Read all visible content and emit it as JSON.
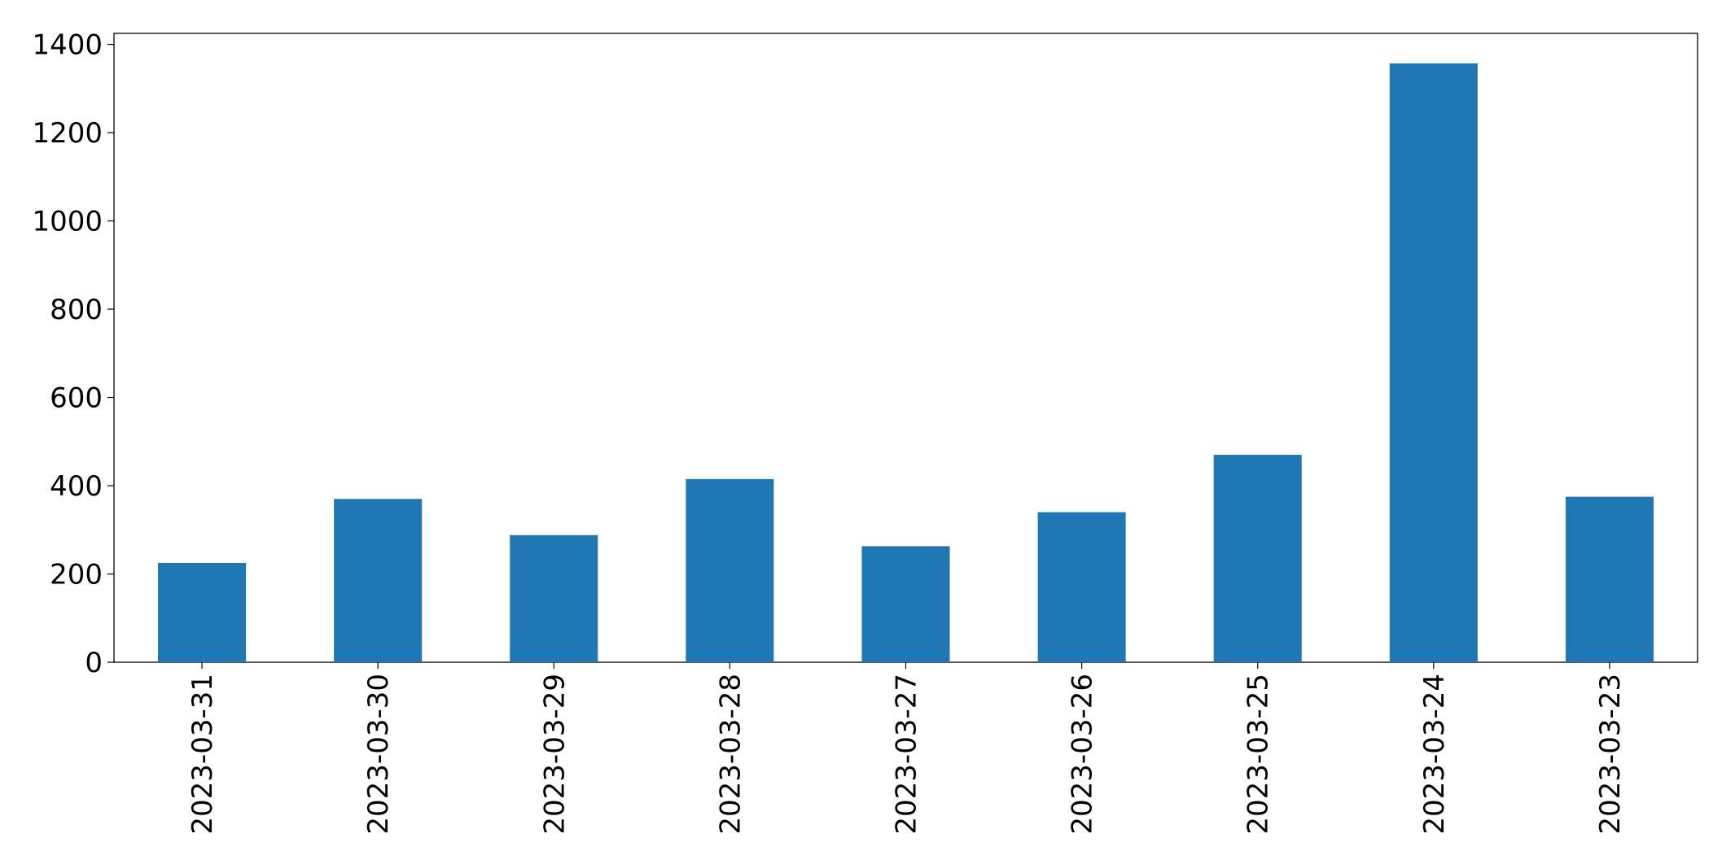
{
  "chart_data": {
    "type": "bar",
    "categories": [
      "2023-03-31",
      "2023-03-30",
      "2023-03-29",
      "2023-03-28",
      "2023-03-27",
      "2023-03-26",
      "2023-03-25",
      "2023-03-24",
      "2023-03-23"
    ],
    "values": [
      225,
      370,
      288,
      415,
      263,
      340,
      470,
      1357,
      375
    ],
    "color": "#1f77b4",
    "ylim": [
      0,
      1425
    ],
    "yticks": [
      0,
      200,
      400,
      600,
      800,
      1000,
      1200,
      1400
    ],
    "grid": false
  }
}
